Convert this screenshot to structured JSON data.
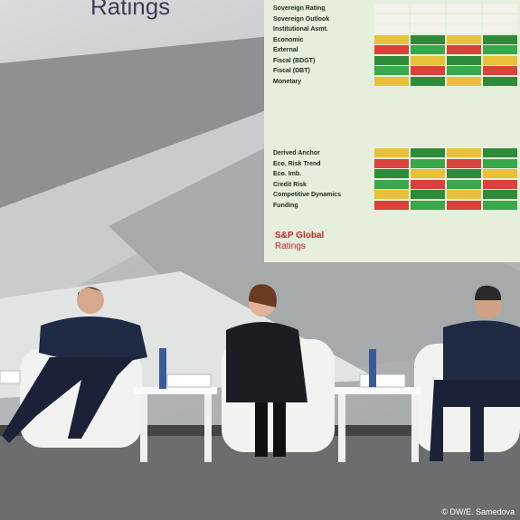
{
  "header": {
    "title": "Ratings"
  },
  "screen": {
    "table1": {
      "rows": [
        "Sovereign Rating",
        "Sovereign Outlook",
        "Institutional Asmt.",
        "Economic",
        "External",
        "Fiscal (BDGT)",
        "Fiscal (DBT)",
        "Monetary"
      ]
    },
    "table2": {
      "rows": [
        "Derived Anchor",
        "Eco. Risk Trend",
        "Eco. Imb.",
        "Credit Risk",
        "Competitive Dynamics",
        "Funding"
      ]
    },
    "brand": {
      "name": "S&P Global",
      "sub": "Ratings"
    }
  },
  "credit": "© DW/E. Samedova"
}
